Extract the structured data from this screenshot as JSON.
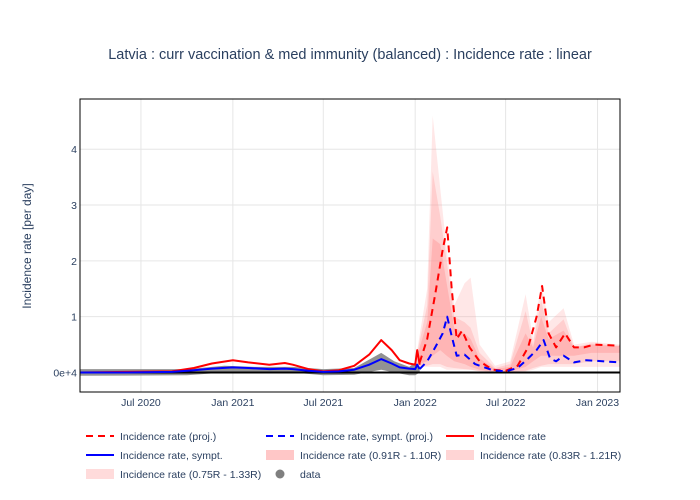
{
  "chart_data": {
    "type": "line",
    "title": "Latvia : curr vaccination & med immunity (balanced) : Incidence rate : linear",
    "xlabel": "",
    "ylabel": "Incidence rate [per day]",
    "xlim": [
      "2020-03-01",
      "2023-02-15"
    ],
    "ylim": [
      -0.35,
      4.9
    ],
    "x_ticks": [
      {
        "date": "2020-07-01",
        "label": "Jul 2020"
      },
      {
        "date": "2021-01-01",
        "label": "Jan 2021"
      },
      {
        "date": "2021-07-01",
        "label": "Jul 2021"
      },
      {
        "date": "2022-01-01",
        "label": "Jan 2022"
      },
      {
        "date": "2022-07-01",
        "label": "Jul 2022"
      },
      {
        "date": "2023-01-01",
        "label": "Jan 2023"
      }
    ],
    "y_ticks": [
      {
        "value": 0,
        "label": "0e+4"
      },
      {
        "value": 1,
        "label": "1"
      },
      {
        "value": 2,
        "label": "2"
      },
      {
        "value": 3,
        "label": "3"
      },
      {
        "value": 4,
        "label": "4"
      }
    ],
    "grid": true,
    "legend_position": "bottom",
    "colors": {
      "proj": "#ff0000",
      "sympt": "#0000ff",
      "band": "#ff9090",
      "data": "#7f7f7f",
      "axis": "#000000",
      "text": "#2a3f5f",
      "grid": "#e6e6e6"
    },
    "legend": [
      {
        "label": "Incidence rate (proj.)",
        "style": "dash-red"
      },
      {
        "label": "Incidence rate, sympt. (proj.)",
        "style": "dash-blue"
      },
      {
        "label": "Incidence rate",
        "style": "solid-red"
      },
      {
        "label": "Incidence rate, sympt.",
        "style": "solid-blue"
      },
      {
        "label": "Incidence rate (0.91R - 1.10R)",
        "style": "band-dark"
      },
      {
        "label": "Incidence rate (0.83R - 1.21R)",
        "style": "band-mid"
      },
      {
        "label": "Incidence rate (0.75R - 1.33R)",
        "style": "band-light"
      },
      {
        "label": "data",
        "style": "marker"
      }
    ],
    "series": [
      {
        "name": "Incidence rate",
        "style": "solid-red",
        "points": [
          [
            "2020-03-01",
            0.0
          ],
          [
            "2020-06-01",
            0.01
          ],
          [
            "2020-09-01",
            0.02
          ],
          [
            "2020-10-15",
            0.08
          ],
          [
            "2020-11-20",
            0.16
          ],
          [
            "2021-01-01",
            0.22
          ],
          [
            "2021-02-01",
            0.18
          ],
          [
            "2021-03-15",
            0.14
          ],
          [
            "2021-04-15",
            0.17
          ],
          [
            "2021-05-01",
            0.14
          ],
          [
            "2021-06-01",
            0.06
          ],
          [
            "2021-07-01",
            0.02
          ],
          [
            "2021-08-01",
            0.04
          ],
          [
            "2021-09-01",
            0.12
          ],
          [
            "2021-10-01",
            0.32
          ],
          [
            "2021-10-25",
            0.58
          ],
          [
            "2021-11-15",
            0.4
          ],
          [
            "2021-12-01",
            0.22
          ],
          [
            "2021-12-20",
            0.16
          ],
          [
            "2022-01-01",
            0.14
          ],
          [
            "2022-01-05",
            0.4
          ],
          [
            "2022-01-10",
            0.14
          ]
        ]
      },
      {
        "name": "Incidence rate, sympt.",
        "style": "solid-blue",
        "points": [
          [
            "2020-03-01",
            0.0
          ],
          [
            "2020-06-01",
            0.0
          ],
          [
            "2020-09-01",
            0.01
          ],
          [
            "2020-10-15",
            0.04
          ],
          [
            "2020-11-20",
            0.07
          ],
          [
            "2021-01-01",
            0.09
          ],
          [
            "2021-02-01",
            0.08
          ],
          [
            "2021-03-15",
            0.06
          ],
          [
            "2021-04-15",
            0.07
          ],
          [
            "2021-05-01",
            0.06
          ],
          [
            "2021-06-01",
            0.03
          ],
          [
            "2021-07-01",
            0.01
          ],
          [
            "2021-08-01",
            0.02
          ],
          [
            "2021-09-01",
            0.05
          ],
          [
            "2021-10-01",
            0.14
          ],
          [
            "2021-10-25",
            0.24
          ],
          [
            "2021-11-15",
            0.16
          ],
          [
            "2021-12-01",
            0.09
          ],
          [
            "2021-12-20",
            0.07
          ],
          [
            "2022-01-01",
            0.06
          ],
          [
            "2022-01-05",
            0.14
          ],
          [
            "2022-01-10",
            0.06
          ]
        ]
      },
      {
        "name": "Incidence rate (proj.)",
        "style": "dash-red",
        "points": [
          [
            "2022-01-10",
            0.18
          ],
          [
            "2022-01-25",
            0.6
          ],
          [
            "2022-02-10",
            1.4
          ],
          [
            "2022-02-25",
            2.2
          ],
          [
            "2022-03-06",
            2.6
          ],
          [
            "2022-03-15",
            1.5
          ],
          [
            "2022-03-25",
            0.6
          ],
          [
            "2022-04-05",
            0.75
          ],
          [
            "2022-04-20",
            0.45
          ],
          [
            "2022-05-10",
            0.2
          ],
          [
            "2022-06-05",
            0.05
          ],
          [
            "2022-07-01",
            0.03
          ],
          [
            "2022-07-25",
            0.12
          ],
          [
            "2022-08-15",
            0.45
          ],
          [
            "2022-09-01",
            1.0
          ],
          [
            "2022-09-12",
            1.55
          ],
          [
            "2022-09-25",
            0.7
          ],
          [
            "2022-10-10",
            0.45
          ],
          [
            "2022-10-28",
            0.7
          ],
          [
            "2022-11-15",
            0.45
          ],
          [
            "2022-12-05",
            0.45
          ],
          [
            "2022-12-25",
            0.5
          ],
          [
            "2023-02-15",
            0.48
          ]
        ]
      },
      {
        "name": "Incidence rate, sympt. (proj.)",
        "style": "dash-blue",
        "points": [
          [
            "2022-01-10",
            0.06
          ],
          [
            "2022-01-25",
            0.2
          ],
          [
            "2022-02-10",
            0.45
          ],
          [
            "2022-02-25",
            0.7
          ],
          [
            "2022-03-06",
            1.0
          ],
          [
            "2022-03-15",
            0.65
          ],
          [
            "2022-03-25",
            0.3
          ],
          [
            "2022-04-10",
            0.32
          ],
          [
            "2022-05-01",
            0.15
          ],
          [
            "2022-06-05",
            0.04
          ],
          [
            "2022-07-01",
            0.02
          ],
          [
            "2022-07-25",
            0.08
          ],
          [
            "2022-08-15",
            0.25
          ],
          [
            "2022-09-01",
            0.4
          ],
          [
            "2022-09-15",
            0.58
          ],
          [
            "2022-09-28",
            0.25
          ],
          [
            "2022-10-10",
            0.2
          ],
          [
            "2022-10-25",
            0.3
          ],
          [
            "2022-11-15",
            0.18
          ],
          [
            "2022-12-10",
            0.22
          ],
          [
            "2023-02-15",
            0.18
          ]
        ]
      },
      {
        "name": "Incidence rate (0.75R - 1.33R)",
        "style": "band-light",
        "band": [
          [
            "2022-01-05",
            0.1,
            0.4
          ],
          [
            "2022-01-25",
            0.1,
            1.5
          ],
          [
            "2022-02-05",
            0.1,
            4.6
          ],
          [
            "2022-02-20",
            0.1,
            3.3
          ],
          [
            "2022-03-05",
            0.05,
            2.2
          ],
          [
            "2022-03-20",
            0.05,
            1.2
          ],
          [
            "2022-04-10",
            0.05,
            1.6
          ],
          [
            "2022-04-22",
            0.05,
            1.7
          ],
          [
            "2022-05-10",
            0.02,
            0.5
          ],
          [
            "2022-06-10",
            0.0,
            0.12
          ],
          [
            "2022-07-10",
            0.0,
            0.2
          ],
          [
            "2022-08-10",
            0.02,
            1.4
          ],
          [
            "2022-08-25",
            0.05,
            0.6
          ],
          [
            "2022-09-10",
            0.1,
            1.6
          ],
          [
            "2022-09-25",
            0.1,
            0.9
          ],
          [
            "2022-10-25",
            0.1,
            1.15
          ],
          [
            "2022-11-15",
            0.1,
            0.5
          ],
          [
            "2022-12-20",
            0.1,
            0.55
          ],
          [
            "2023-02-15",
            0.1,
            0.5
          ]
        ]
      },
      {
        "name": "Incidence rate (0.83R - 1.21R)",
        "style": "band-mid",
        "band": [
          [
            "2022-01-05",
            0.12,
            0.35
          ],
          [
            "2022-01-25",
            0.12,
            1.2
          ],
          [
            "2022-02-05",
            0.15,
            3.6
          ],
          [
            "2022-02-20",
            0.15,
            2.8
          ],
          [
            "2022-03-05",
            0.1,
            2.0
          ],
          [
            "2022-03-20",
            0.08,
            1.0
          ],
          [
            "2022-04-10",
            0.06,
            0.9
          ],
          [
            "2022-04-22",
            0.05,
            0.8
          ],
          [
            "2022-05-10",
            0.03,
            0.35
          ],
          [
            "2022-06-10",
            0.01,
            0.08
          ],
          [
            "2022-07-10",
            0.01,
            0.15
          ],
          [
            "2022-08-10",
            0.03,
            1.1
          ],
          [
            "2022-08-25",
            0.08,
            0.5
          ],
          [
            "2022-09-10",
            0.12,
            1.3
          ],
          [
            "2022-09-25",
            0.15,
            0.7
          ],
          [
            "2022-10-25",
            0.15,
            0.95
          ],
          [
            "2022-11-15",
            0.15,
            0.45
          ],
          [
            "2022-12-20",
            0.2,
            0.52
          ],
          [
            "2023-02-15",
            0.2,
            0.48
          ]
        ]
      },
      {
        "name": "Incidence rate (0.91R - 1.10R)",
        "style": "band-dark",
        "band": [
          [
            "2022-01-05",
            0.14,
            0.3
          ],
          [
            "2022-01-25",
            0.2,
            0.9
          ],
          [
            "2022-02-05",
            0.3,
            2.4
          ],
          [
            "2022-02-20",
            0.4,
            2.3
          ],
          [
            "2022-03-05",
            0.3,
            1.6
          ],
          [
            "2022-03-20",
            0.2,
            0.8
          ],
          [
            "2022-04-10",
            0.15,
            0.7
          ],
          [
            "2022-04-22",
            0.1,
            0.6
          ],
          [
            "2022-05-10",
            0.05,
            0.25
          ],
          [
            "2022-06-10",
            0.02,
            0.06
          ],
          [
            "2022-07-10",
            0.02,
            0.1
          ],
          [
            "2022-08-10",
            0.1,
            0.7
          ],
          [
            "2022-08-25",
            0.2,
            0.45
          ],
          [
            "2022-09-10",
            0.3,
            1.0
          ],
          [
            "2022-09-25",
            0.3,
            0.6
          ],
          [
            "2022-10-25",
            0.3,
            0.75
          ],
          [
            "2022-11-15",
            0.3,
            0.45
          ],
          [
            "2022-12-20",
            0.35,
            0.5
          ],
          [
            "2023-02-15",
            0.35,
            0.47
          ]
        ]
      },
      {
        "name": "data",
        "style": "marker",
        "band": [
          [
            "2020-03-01",
            -0.06,
            0.06
          ],
          [
            "2020-10-01",
            -0.05,
            0.06
          ],
          [
            "2020-12-15",
            0.0,
            0.12
          ],
          [
            "2021-02-15",
            0.0,
            0.1
          ],
          [
            "2021-05-01",
            0.0,
            0.1
          ],
          [
            "2021-07-01",
            -0.05,
            0.06
          ],
          [
            "2021-09-01",
            -0.04,
            0.08
          ],
          [
            "2021-10-25",
            0.05,
            0.35
          ],
          [
            "2021-11-20",
            0.0,
            0.2
          ],
          [
            "2021-12-20",
            -0.05,
            0.1
          ],
          [
            "2022-01-01",
            -0.05,
            0.18
          ],
          [
            "2022-01-10",
            0.0,
            0.1
          ]
        ]
      }
    ]
  }
}
